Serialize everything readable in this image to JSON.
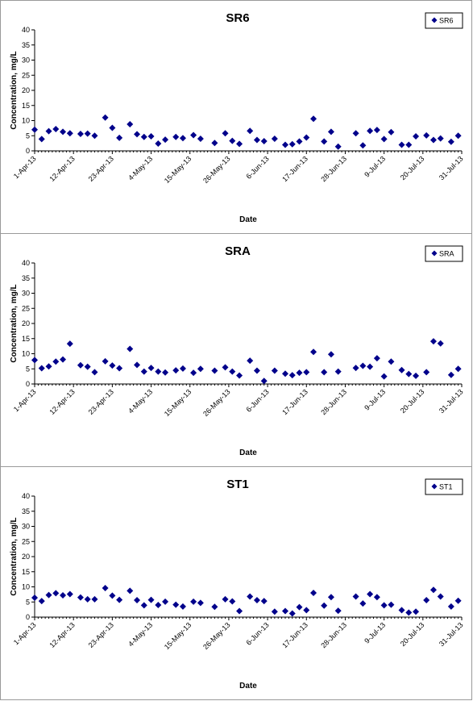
{
  "colors": {
    "marker": "#00008b",
    "axis": "#000000",
    "frame": "#9a9a9a"
  },
  "chart_data": [
    {
      "type": "scatter",
      "title": "SR6",
      "xlabel": "Date",
      "ylabel": "Concentration, mg/L",
      "ylim": [
        0,
        40
      ],
      "yticks": [
        "0",
        "5",
        "10",
        "15",
        "20",
        "25",
        "30",
        "35",
        "40"
      ],
      "xlim": [
        "2013-04-01",
        "2013-07-31"
      ],
      "xticks": [
        "1-Apr-13",
        "12-Apr-13",
        "23-Apr-13",
        "4-May-13",
        "15-May-13",
        "26-May-13",
        "6-Jun-13",
        "17-Jun-13",
        "28-Jun-13",
        "9-Jul-13",
        "20-Jul-13",
        "31-Jul-13"
      ],
      "legend": {
        "position": "top-right",
        "entries": [
          "SR6"
        ]
      },
      "grid": false,
      "series": [
        {
          "name": "SR6",
          "points": [
            [
              "2013-04-01",
              7.0
            ],
            [
              "2013-04-03",
              3.9
            ],
            [
              "2013-04-05",
              6.5
            ],
            [
              "2013-04-07",
              7.2
            ],
            [
              "2013-04-09",
              6.3
            ],
            [
              "2013-04-11",
              5.8
            ],
            [
              "2013-04-14",
              5.6
            ],
            [
              "2013-04-16",
              5.7
            ],
            [
              "2013-04-18",
              5.0
            ],
            [
              "2013-04-21",
              11.0
            ],
            [
              "2013-04-23",
              7.6
            ],
            [
              "2013-04-25",
              4.3
            ],
            [
              "2013-04-28",
              8.8
            ],
            [
              "2013-04-30",
              5.5
            ],
            [
              "2013-05-02",
              4.6
            ],
            [
              "2013-05-04",
              4.8
            ],
            [
              "2013-05-06",
              2.4
            ],
            [
              "2013-05-08",
              3.7
            ],
            [
              "2013-05-11",
              4.6
            ],
            [
              "2013-05-13",
              4.2
            ],
            [
              "2013-05-16",
              5.2
            ],
            [
              "2013-05-18",
              4.0
            ],
            [
              "2013-05-22",
              2.6
            ],
            [
              "2013-05-25",
              5.8
            ],
            [
              "2013-05-27",
              3.3
            ],
            [
              "2013-05-29",
              2.3
            ],
            [
              "2013-06-01",
              6.6
            ],
            [
              "2013-06-03",
              3.6
            ],
            [
              "2013-06-05",
              3.2
            ],
            [
              "2013-06-08",
              4.0
            ],
            [
              "2013-06-11",
              2.0
            ],
            [
              "2013-06-13",
              2.2
            ],
            [
              "2013-06-15",
              3.1
            ],
            [
              "2013-06-17",
              4.4
            ],
            [
              "2013-06-19",
              10.6
            ],
            [
              "2013-06-22",
              3.1
            ],
            [
              "2013-06-24",
              6.3
            ],
            [
              "2013-06-26",
              1.4
            ],
            [
              "2013-07-01",
              5.8
            ],
            [
              "2013-07-03",
              1.8
            ],
            [
              "2013-07-05",
              6.6
            ],
            [
              "2013-07-07",
              6.9
            ],
            [
              "2013-07-09",
              3.9
            ],
            [
              "2013-07-11",
              6.2
            ],
            [
              "2013-07-14",
              2.0
            ],
            [
              "2013-07-16",
              2.0
            ],
            [
              "2013-07-18",
              4.8
            ],
            [
              "2013-07-21",
              5.1
            ],
            [
              "2013-07-23",
              3.6
            ],
            [
              "2013-07-25",
              4.1
            ],
            [
              "2013-07-28",
              3.0
            ],
            [
              "2013-07-30",
              5.0
            ]
          ]
        }
      ]
    },
    {
      "type": "scatter",
      "title": "SRA",
      "xlabel": "Date",
      "ylabel": "Concentration, mg/L",
      "ylim": [
        0,
        40
      ],
      "yticks": [
        "0",
        "5",
        "10",
        "15",
        "20",
        "25",
        "30",
        "35",
        "40"
      ],
      "xlim": [
        "2013-04-01",
        "2013-07-31"
      ],
      "xticks": [
        "1-Apr-13",
        "12-Apr-13",
        "23-Apr-13",
        "4-May-13",
        "15-May-13",
        "26-May-13",
        "6-Jun-13",
        "17-Jun-13",
        "28-Jun-13",
        "9-Jul-13",
        "20-Jul-13",
        "31-Jul-13"
      ],
      "legend": {
        "position": "top-right",
        "entries": [
          "SRA"
        ]
      },
      "grid": false,
      "series": [
        {
          "name": "SRA",
          "points": [
            [
              "2013-04-01",
              7.9
            ],
            [
              "2013-04-03",
              5.2
            ],
            [
              "2013-04-05",
              5.8
            ],
            [
              "2013-04-07",
              7.4
            ],
            [
              "2013-04-09",
              8.1
            ],
            [
              "2013-04-11",
              13.3
            ],
            [
              "2013-04-14",
              6.2
            ],
            [
              "2013-04-16",
              5.7
            ],
            [
              "2013-04-18",
              3.9
            ],
            [
              "2013-04-21",
              7.5
            ],
            [
              "2013-04-23",
              6.1
            ],
            [
              "2013-04-25",
              5.2
            ],
            [
              "2013-04-28",
              11.6
            ],
            [
              "2013-04-30",
              6.3
            ],
            [
              "2013-05-02",
              4.1
            ],
            [
              "2013-05-04",
              5.3
            ],
            [
              "2013-05-06",
              4.1
            ],
            [
              "2013-05-08",
              3.8
            ],
            [
              "2013-05-11",
              4.5
            ],
            [
              "2013-05-13",
              5.1
            ],
            [
              "2013-05-16",
              3.7
            ],
            [
              "2013-05-18",
              5.0
            ],
            [
              "2013-05-22",
              4.4
            ],
            [
              "2013-05-25",
              5.5
            ],
            [
              "2013-05-27",
              4.1
            ],
            [
              "2013-05-29",
              2.8
            ],
            [
              "2013-06-01",
              7.7
            ],
            [
              "2013-06-03",
              4.4
            ],
            [
              "2013-06-05",
              1.0
            ],
            [
              "2013-06-08",
              4.4
            ],
            [
              "2013-06-11",
              3.4
            ],
            [
              "2013-06-13",
              2.9
            ],
            [
              "2013-06-15",
              3.7
            ],
            [
              "2013-06-17",
              3.9
            ],
            [
              "2013-06-19",
              10.6
            ],
            [
              "2013-06-22",
              3.9
            ],
            [
              "2013-06-24",
              9.8
            ],
            [
              "2013-06-26",
              4.1
            ],
            [
              "2013-07-01",
              5.3
            ],
            [
              "2013-07-03",
              6.0
            ],
            [
              "2013-07-05",
              5.7
            ],
            [
              "2013-07-07",
              8.5
            ],
            [
              "2013-07-09",
              2.5
            ],
            [
              "2013-07-11",
              7.4
            ],
            [
              "2013-07-14",
              4.6
            ],
            [
              "2013-07-16",
              3.3
            ],
            [
              "2013-07-18",
              2.7
            ],
            [
              "2013-07-21",
              3.9
            ],
            [
              "2013-07-23",
              14.1
            ],
            [
              "2013-07-25",
              13.4
            ],
            [
              "2013-07-28",
              3.0
            ],
            [
              "2013-07-30",
              5.0
            ]
          ]
        }
      ]
    },
    {
      "type": "scatter",
      "title": "ST1",
      "xlabel": "Date",
      "ylabel": "Concentration, mg/L",
      "ylim": [
        0,
        40
      ],
      "yticks": [
        "0",
        "5",
        "10",
        "15",
        "20",
        "25",
        "30",
        "35",
        "40"
      ],
      "xlim": [
        "2013-04-01",
        "2013-07-31"
      ],
      "xticks": [
        "1-Apr-13",
        "12-Apr-13",
        "23-Apr-13",
        "4-May-13",
        "15-May-13",
        "26-May-13",
        "6-Jun-13",
        "17-Jun-13",
        "28-Jun-13",
        "9-Jul-13",
        "20-Jul-13",
        "31-Jul-13"
      ],
      "legend": {
        "position": "top-right",
        "entries": [
          "ST1"
        ]
      },
      "grid": false,
      "series": [
        {
          "name": "ST1",
          "points": [
            [
              "2013-04-01",
              6.4
            ],
            [
              "2013-04-03",
              5.3
            ],
            [
              "2013-04-05",
              7.3
            ],
            [
              "2013-04-07",
              7.9
            ],
            [
              "2013-04-09",
              7.2
            ],
            [
              "2013-04-11",
              7.6
            ],
            [
              "2013-04-14",
              6.5
            ],
            [
              "2013-04-16",
              5.9
            ],
            [
              "2013-04-18",
              5.9
            ],
            [
              "2013-04-21",
              9.6
            ],
            [
              "2013-04-23",
              7.1
            ],
            [
              "2013-04-25",
              5.7
            ],
            [
              "2013-04-28",
              8.7
            ],
            [
              "2013-04-30",
              5.6
            ],
            [
              "2013-05-02",
              3.9
            ],
            [
              "2013-05-04",
              5.7
            ],
            [
              "2013-05-06",
              4.0
            ],
            [
              "2013-05-08",
              5.1
            ],
            [
              "2013-05-11",
              4.1
            ],
            [
              "2013-05-13",
              3.5
            ],
            [
              "2013-05-16",
              5.1
            ],
            [
              "2013-05-18",
              4.7
            ],
            [
              "2013-05-22",
              3.4
            ],
            [
              "2013-05-25",
              5.9
            ],
            [
              "2013-05-27",
              5.2
            ],
            [
              "2013-05-29",
              2.0
            ],
            [
              "2013-06-01",
              6.8
            ],
            [
              "2013-06-03",
              5.6
            ],
            [
              "2013-06-05",
              5.3
            ],
            [
              "2013-06-08",
              1.8
            ],
            [
              "2013-06-11",
              2.0
            ],
            [
              "2013-06-13",
              1.2
            ],
            [
              "2013-06-15",
              3.3
            ],
            [
              "2013-06-17",
              2.3
            ],
            [
              "2013-06-19",
              8.0
            ],
            [
              "2013-06-22",
              3.8
            ],
            [
              "2013-06-24",
              6.6
            ],
            [
              "2013-06-26",
              2.1
            ],
            [
              "2013-07-01",
              6.8
            ],
            [
              "2013-07-03",
              4.5
            ],
            [
              "2013-07-05",
              7.6
            ],
            [
              "2013-07-07",
              6.6
            ],
            [
              "2013-07-09",
              3.9
            ],
            [
              "2013-07-11",
              4.1
            ],
            [
              "2013-07-14",
              2.3
            ],
            [
              "2013-07-16",
              1.5
            ],
            [
              "2013-07-18",
              1.8
            ],
            [
              "2013-07-21",
              5.6
            ],
            [
              "2013-07-23",
              9.0
            ],
            [
              "2013-07-25",
              6.8
            ],
            [
              "2013-07-28",
              3.5
            ],
            [
              "2013-07-30",
              5.4
            ]
          ]
        }
      ]
    }
  ]
}
